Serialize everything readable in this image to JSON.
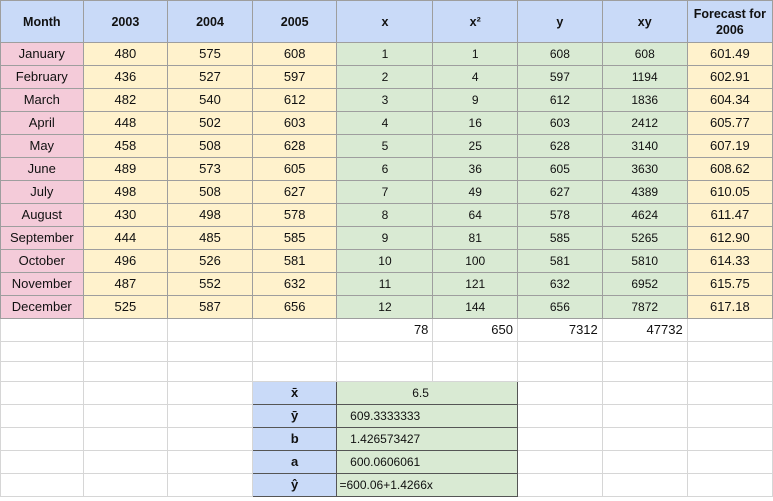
{
  "headers": [
    "Month",
    "2003",
    "2004",
    "2005",
    "x",
    "x²",
    "y",
    "xy",
    "Forecast for 2006"
  ],
  "rows": [
    {
      "month": "January",
      "y2003": "480",
      "y2004": "575",
      "y2005": "608",
      "x": "1",
      "x2": "1",
      "y": "608",
      "xy": "608",
      "forecast": "601.49"
    },
    {
      "month": "February",
      "y2003": "436",
      "y2004": "527",
      "y2005": "597",
      "x": "2",
      "x2": "4",
      "y": "597",
      "xy": "1194",
      "forecast": "602.91"
    },
    {
      "month": "March",
      "y2003": "482",
      "y2004": "540",
      "y2005": "612",
      "x": "3",
      "x2": "9",
      "y": "612",
      "xy": "1836",
      "forecast": "604.34"
    },
    {
      "month": "April",
      "y2003": "448",
      "y2004": "502",
      "y2005": "603",
      "x": "4",
      "x2": "16",
      "y": "603",
      "xy": "2412",
      "forecast": "605.77"
    },
    {
      "month": "May",
      "y2003": "458",
      "y2004": "508",
      "y2005": "628",
      "x": "5",
      "x2": "25",
      "y": "628",
      "xy": "3140",
      "forecast": "607.19"
    },
    {
      "month": "June",
      "y2003": "489",
      "y2004": "573",
      "y2005": "605",
      "x": "6",
      "x2": "36",
      "y": "605",
      "xy": "3630",
      "forecast": "608.62"
    },
    {
      "month": "July",
      "y2003": "498",
      "y2004": "508",
      "y2005": "627",
      "x": "7",
      "x2": "49",
      "y": "627",
      "xy": "4389",
      "forecast": "610.05"
    },
    {
      "month": "August",
      "y2003": "430",
      "y2004": "498",
      "y2005": "578",
      "x": "8",
      "x2": "64",
      "y": "578",
      "xy": "4624",
      "forecast": "611.47"
    },
    {
      "month": "September",
      "y2003": "444",
      "y2004": "485",
      "y2005": "585",
      "x": "9",
      "x2": "81",
      "y": "585",
      "xy": "5265",
      "forecast": "612.90"
    },
    {
      "month": "October",
      "y2003": "496",
      "y2004": "526",
      "y2005": "581",
      "x": "10",
      "x2": "100",
      "y": "581",
      "xy": "5810",
      "forecast": "614.33"
    },
    {
      "month": "November",
      "y2003": "487",
      "y2004": "552",
      "y2005": "632",
      "x": "11",
      "x2": "121",
      "y": "632",
      "xy": "6952",
      "forecast": "615.75"
    },
    {
      "month": "December",
      "y2003": "525",
      "y2004": "587",
      "y2005": "656",
      "x": "12",
      "x2": "144",
      "y": "656",
      "xy": "7872",
      "forecast": "617.18"
    }
  ],
  "totals": {
    "x": "78",
    "x2": "650",
    "y": "7312",
    "xy": "47732"
  },
  "stats": [
    {
      "label": "x̄",
      "value": "6.5"
    },
    {
      "label": "ȳ",
      "value": "609.3333333"
    },
    {
      "label": "b",
      "value": "1.426573427"
    },
    {
      "label": "a",
      "value": "600.0606061"
    },
    {
      "label": "ŷ",
      "value": "=600.06+1.4266x"
    }
  ]
}
